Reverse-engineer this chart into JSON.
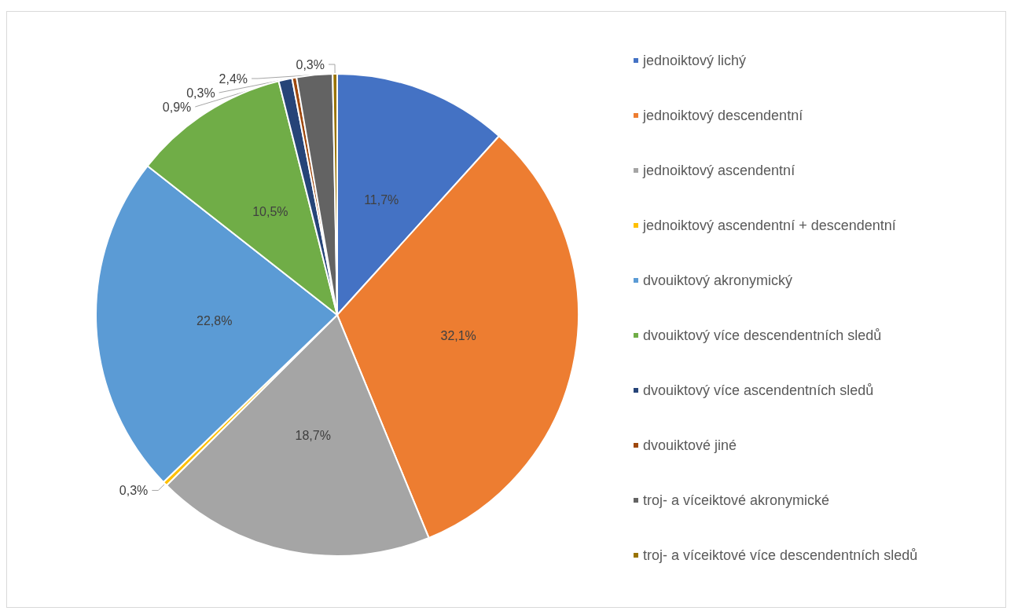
{
  "chart_data": {
    "type": "pie",
    "categories": [
      "jednoiktový lichý",
      "jednoiktový descendentní",
      "jednoiktový ascendentní",
      "jednoiktový ascendentní + descendentní",
      "dvouiktový akronymický",
      "dvouiktový více descendentních sledů",
      "dvouiktový více ascendentních sledů",
      "dvouiktové jiné",
      "troj- a víceiktové akronymické",
      "troj- a víceiktové více descendentních sledů"
    ],
    "values": [
      11.7,
      32.1,
      18.7,
      0.3,
      22.8,
      10.5,
      0.9,
      0.3,
      2.4,
      0.3
    ],
    "value_labels": [
      "11,7%",
      "32,1%",
      "18,7%",
      "0,3%",
      "22,8%",
      "10,5%",
      "0,9%",
      "0,3%",
      "2,4%",
      "0,3%"
    ],
    "colors": [
      "#4472c4",
      "#ed7d31",
      "#a5a5a5",
      "#ffc000",
      "#5b9bd5",
      "#70ad47",
      "#264478",
      "#9e480e",
      "#636363",
      "#997300"
    ],
    "legend": "right"
  }
}
